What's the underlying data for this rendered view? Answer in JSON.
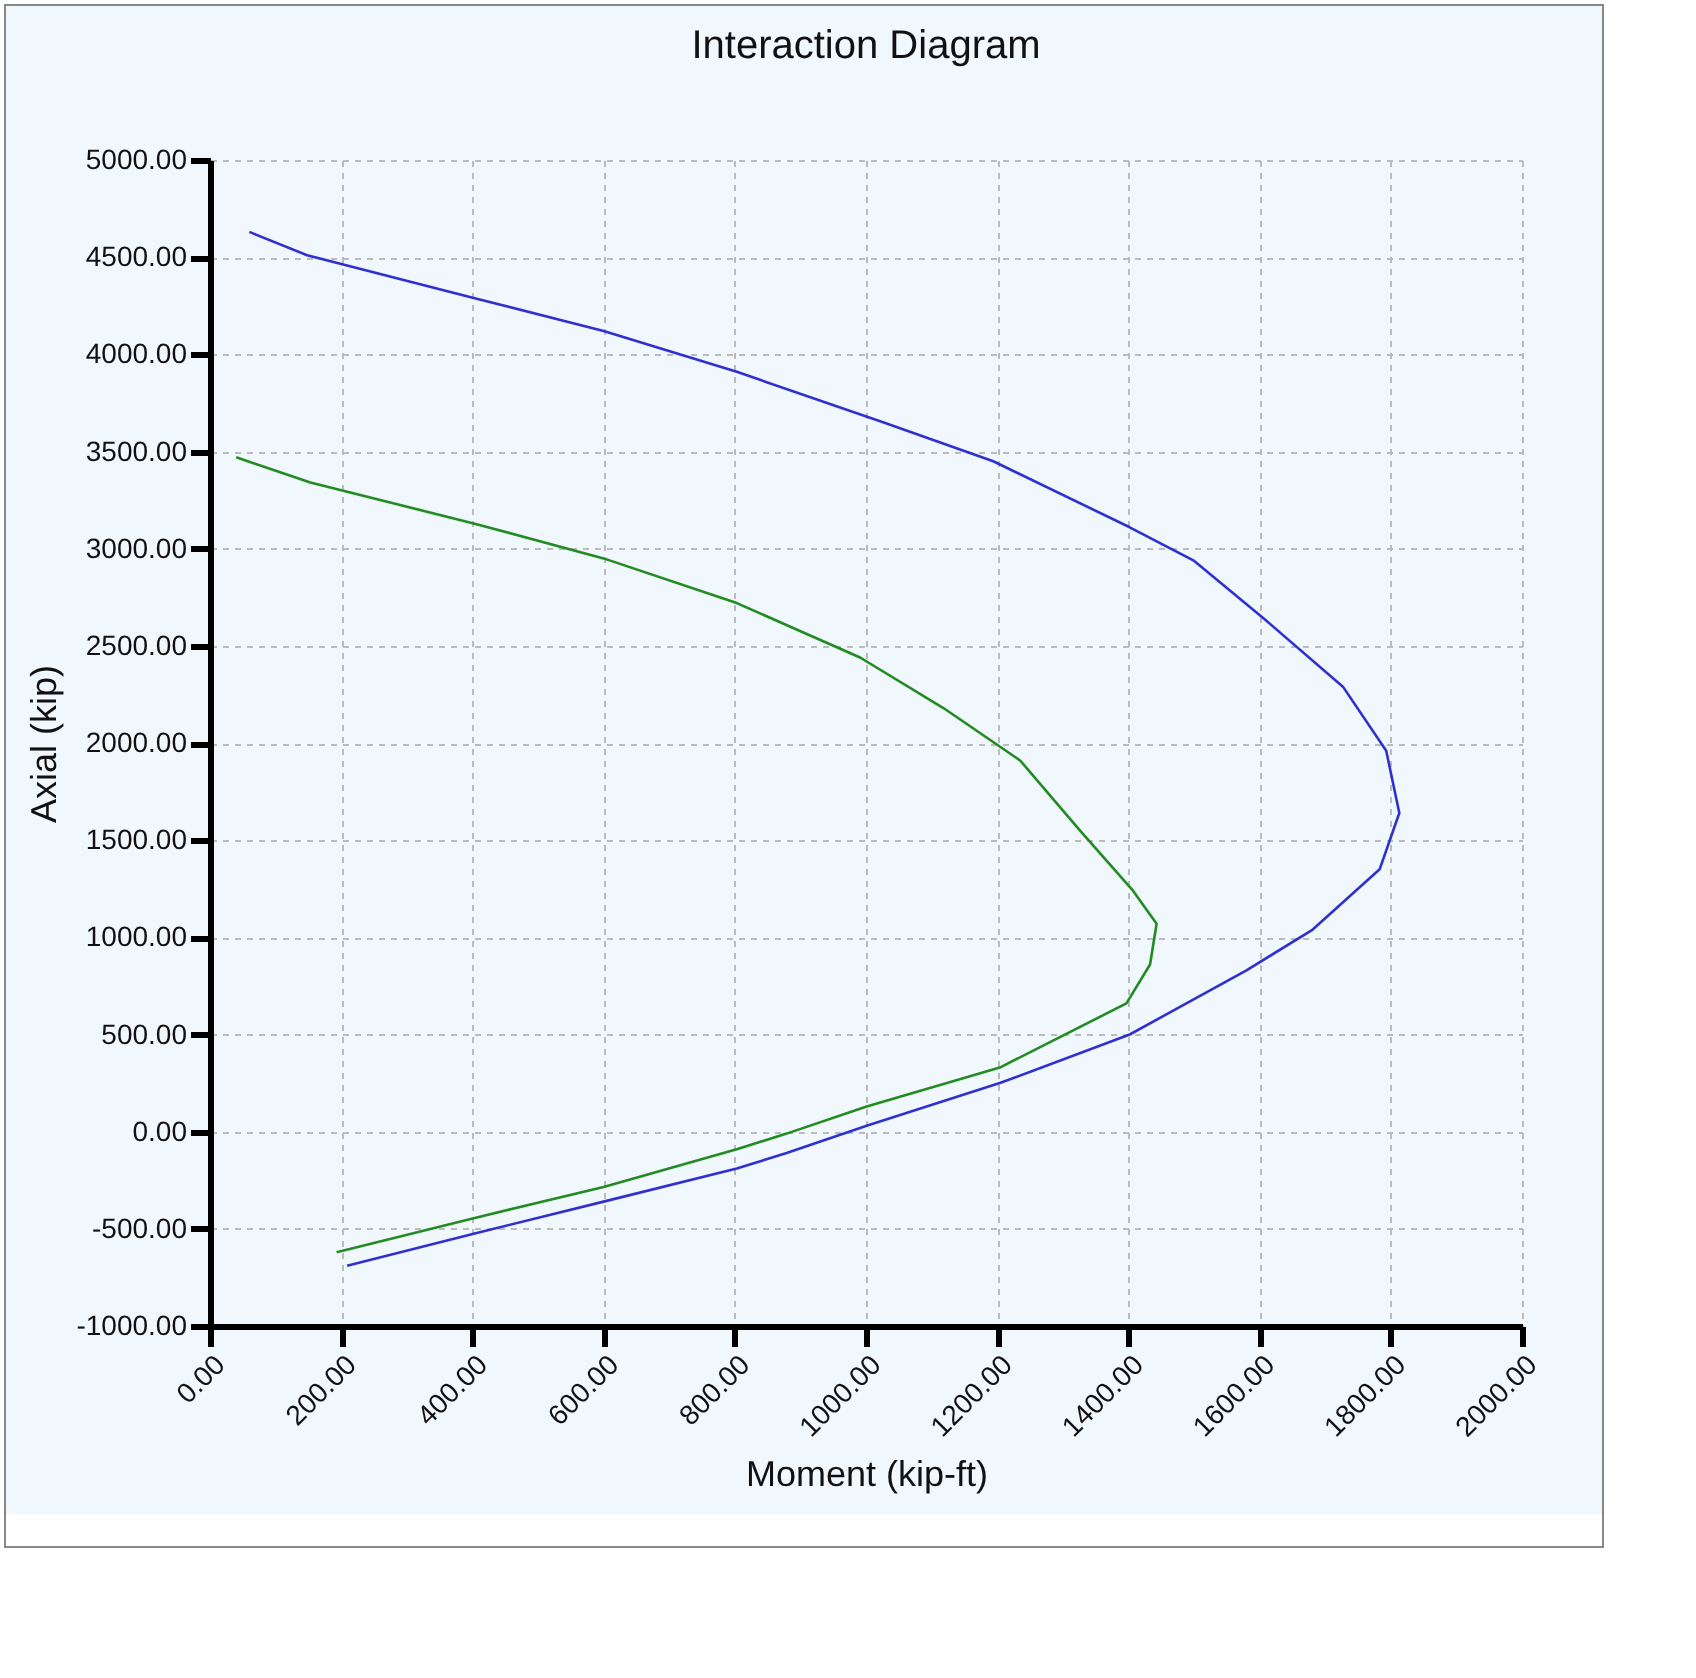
{
  "chart_data": {
    "type": "line",
    "title": "Interaction Diagram",
    "xlabel": "Moment (kip-ft)",
    "ylabel": "Axial (kip)",
    "xlim": [
      0,
      2000
    ],
    "ylim": [
      -1000,
      5000
    ],
    "xticks": [
      {
        "value": 0,
        "label": "0.00"
      },
      {
        "value": 200,
        "label": "200.00"
      },
      {
        "value": 400,
        "label": "400.00"
      },
      {
        "value": 600,
        "label": "600.00"
      },
      {
        "value": 800,
        "label": "800.00"
      },
      {
        "value": 1000,
        "label": "1000.00"
      },
      {
        "value": 1200,
        "label": "1200.00"
      },
      {
        "value": 1400,
        "label": "1400.00"
      },
      {
        "value": 1600,
        "label": "1600.00"
      },
      {
        "value": 1800,
        "label": "1800.00"
      },
      {
        "value": 2000,
        "label": "2000.00"
      }
    ],
    "yticks": [
      {
        "value": -1000,
        "label": "-1000.00"
      },
      {
        "value": -500,
        "label": "-500.00"
      },
      {
        "value": 0,
        "label": "0.00"
      },
      {
        "value": 500,
        "label": "500.00"
      },
      {
        "value": 1000,
        "label": "1000.00"
      },
      {
        "value": 1500,
        "label": "1500.00"
      },
      {
        "value": 2000,
        "label": "2000.00"
      },
      {
        "value": 2500,
        "label": "2500.00"
      },
      {
        "value": 3000,
        "label": "3000.00"
      },
      {
        "value": 3500,
        "label": "3500.00"
      },
      {
        "value": 4000,
        "label": "4000.00"
      },
      {
        "value": 4500,
        "label": "4500.00"
      },
      {
        "value": 5000,
        "label": "5000.00"
      }
    ],
    "grid": true,
    "legend": false,
    "line_style": "solid",
    "series": [
      {
        "color": "#3030d0",
        "x": [
          60,
          148,
          402,
          600,
          803,
          1026,
          1194,
          1402,
          1499,
          1610,
          1727,
          1793,
          1813,
          1783,
          1681,
          1580,
          1402,
          1204,
          1001,
          879,
          803,
          600,
          402,
          209
        ],
        "values": [
          4630,
          4510,
          4290,
          4120,
          3910,
          3650,
          3450,
          3110,
          2940,
          2630,
          2290,
          1960,
          1640,
          1350,
          1040,
          830,
          500,
          250,
          30,
          -110,
          -190,
          -360,
          -525,
          -690
        ]
      },
      {
        "color": "#228b22",
        "x": [
          40,
          153,
          402,
          600,
          803,
          991,
          1118,
          1235,
          1326,
          1407,
          1443,
          1433,
          1397,
          1204,
          1001,
          879,
          803,
          600,
          402,
          193
        ],
        "values": [
          3470,
          3340,
          3130,
          2950,
          2720,
          2440,
          2180,
          1910,
          1550,
          1240,
          1070,
          860,
          660,
          330,
          130,
          -10,
          -90,
          -285,
          -445,
          -620
        ]
      }
    ]
  }
}
